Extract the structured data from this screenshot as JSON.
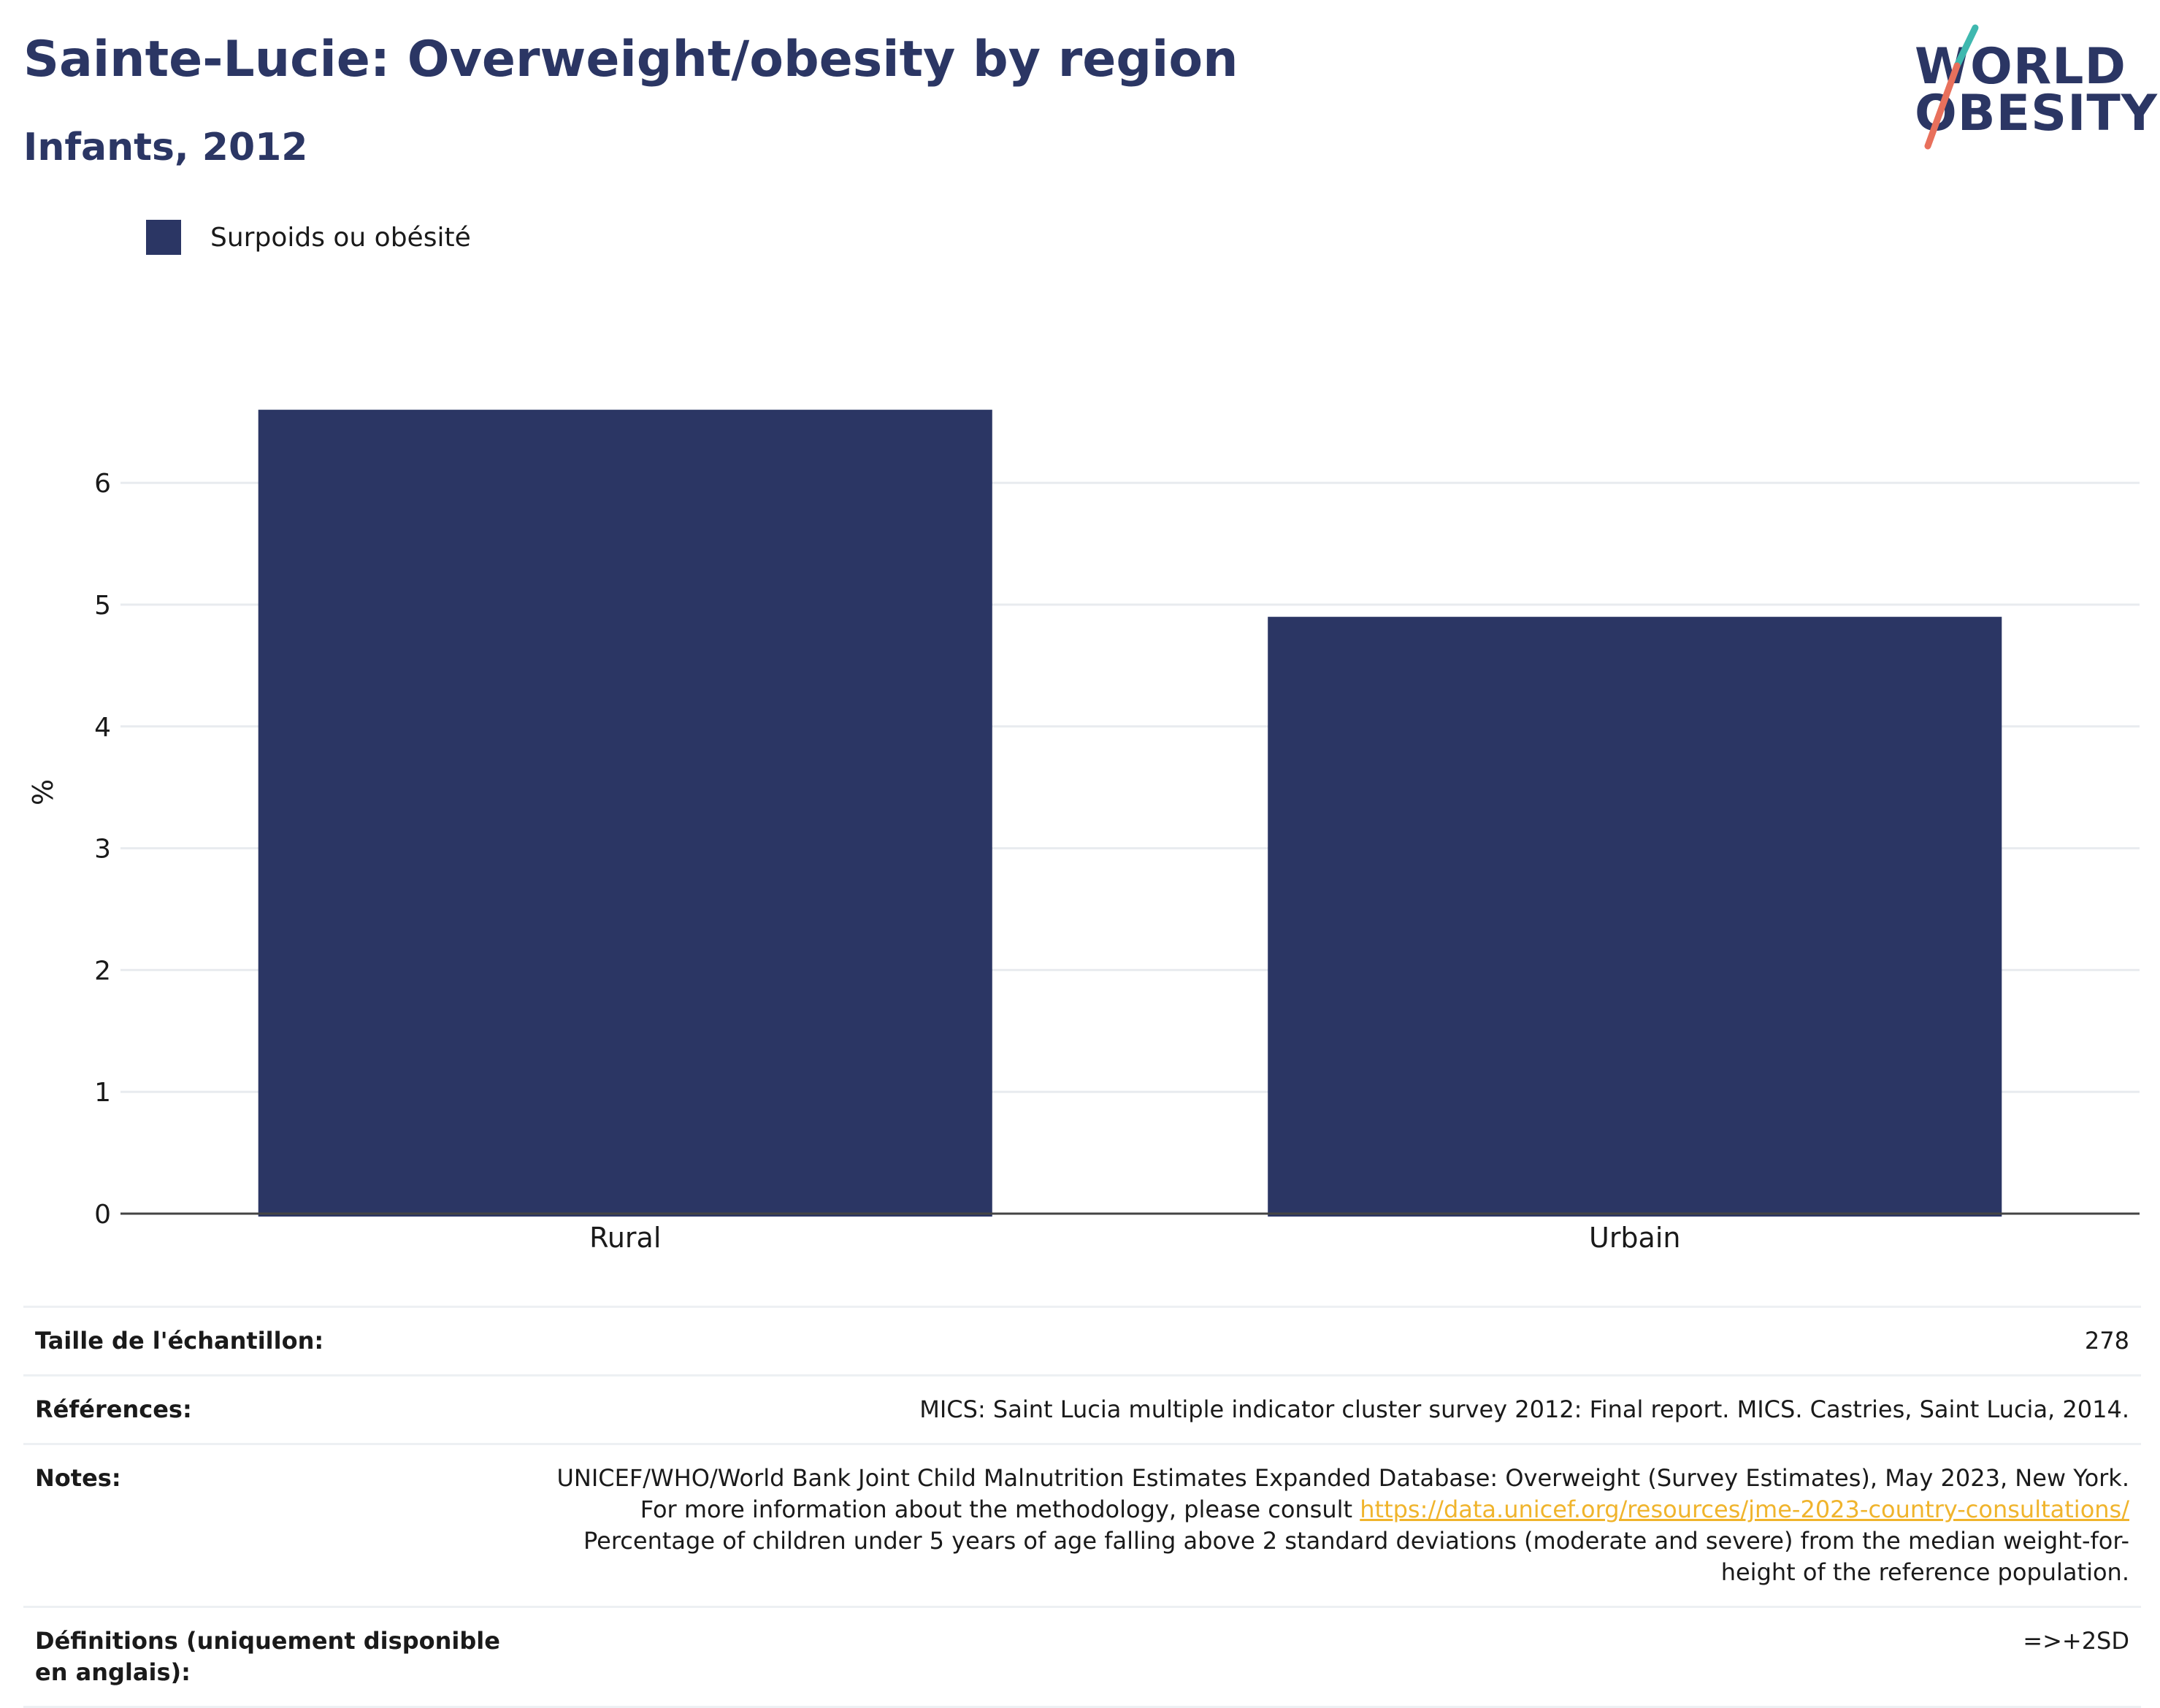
{
  "header": {
    "title": "Sainte-Lucie: Overweight/obesity by region",
    "subtitle": "Infants, 2012"
  },
  "logo": {
    "line1": "WORLD",
    "line2": "OBESITY",
    "colors": {
      "navy": "#2b3664",
      "teal": "#3fb8af",
      "coral": "#e8705c"
    }
  },
  "legend": {
    "label": "Surpoids ou obésité",
    "color": "#2b3664"
  },
  "chart_data": {
    "type": "bar",
    "categories": [
      "Rural",
      "Urbain"
    ],
    "series": [
      {
        "name": "Surpoids ou obésité",
        "values": [
          6.6,
          4.9
        ],
        "color": "#2b3664"
      }
    ],
    "ylabel": "%",
    "xlabel": "",
    "ylim": [
      0,
      7
    ],
    "yticks": [
      0,
      1,
      2,
      3,
      4,
      5,
      6
    ],
    "grid": true,
    "legend_position": "top-left"
  },
  "info": {
    "rows": [
      {
        "key": "Taille de l'échantillon:",
        "value": "278"
      },
      {
        "key": "Références:",
        "value": "MICS: Saint Lucia multiple indicator cluster survey 2012: Final report. MICS. Castries, Saint Lucia, 2014."
      },
      {
        "key": "Notes:",
        "value_before": "UNICEF/WHO/World Bank Joint Child Malnutrition Estimates Expanded Database: Overweight (Survey Estimates), May 2023, New York. For more information about the methodology, please consult ",
        "link": "https://data.unicef.org/resources/jme-2023-country-consultations/",
        "value_after": " Percentage of children under 5 years of age falling above 2 standard deviations (moderate and severe) from the median weight-for-height of the reference population."
      },
      {
        "key": "Définitions (uniquement disponible en anglais):",
        "value": "=>+2SD"
      }
    ]
  }
}
